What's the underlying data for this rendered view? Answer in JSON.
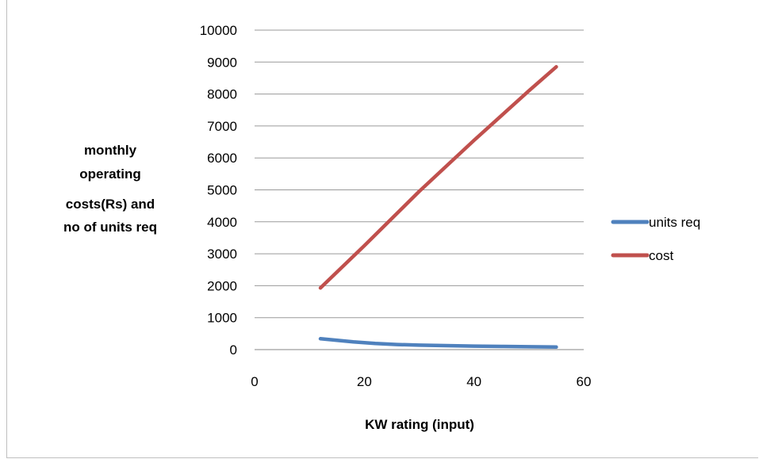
{
  "chart_data": {
    "type": "line",
    "title": "",
    "xlabel": "KW rating (input)",
    "ylabel_lines": [
      "monthly",
      "operating",
      "costs(Rs) and",
      "no of units req"
    ],
    "xlim": [
      0,
      60
    ],
    "ylim": [
      0,
      10000
    ],
    "x_ticks": [
      0,
      20,
      40,
      60
    ],
    "y_ticks": [
      0,
      1000,
      2000,
      3000,
      4000,
      5000,
      6000,
      7000,
      8000,
      9000,
      10000
    ],
    "grid": "horizontal",
    "legend_position": "right",
    "series": [
      {
        "name": "units req",
        "color": "#4f81bd",
        "x": [
          12,
          15,
          18,
          22,
          26,
          30,
          35,
          40,
          45,
          50,
          55
        ],
        "y": [
          340,
          290,
          240,
          190,
          160,
          140,
          125,
          110,
          100,
          90,
          80
        ]
      },
      {
        "name": "cost",
        "color": "#c0504d",
        "x": [
          12,
          20,
          30,
          40,
          50,
          55
        ],
        "y": [
          1930,
          3250,
          4950,
          6550,
          8100,
          8850
        ]
      }
    ]
  }
}
